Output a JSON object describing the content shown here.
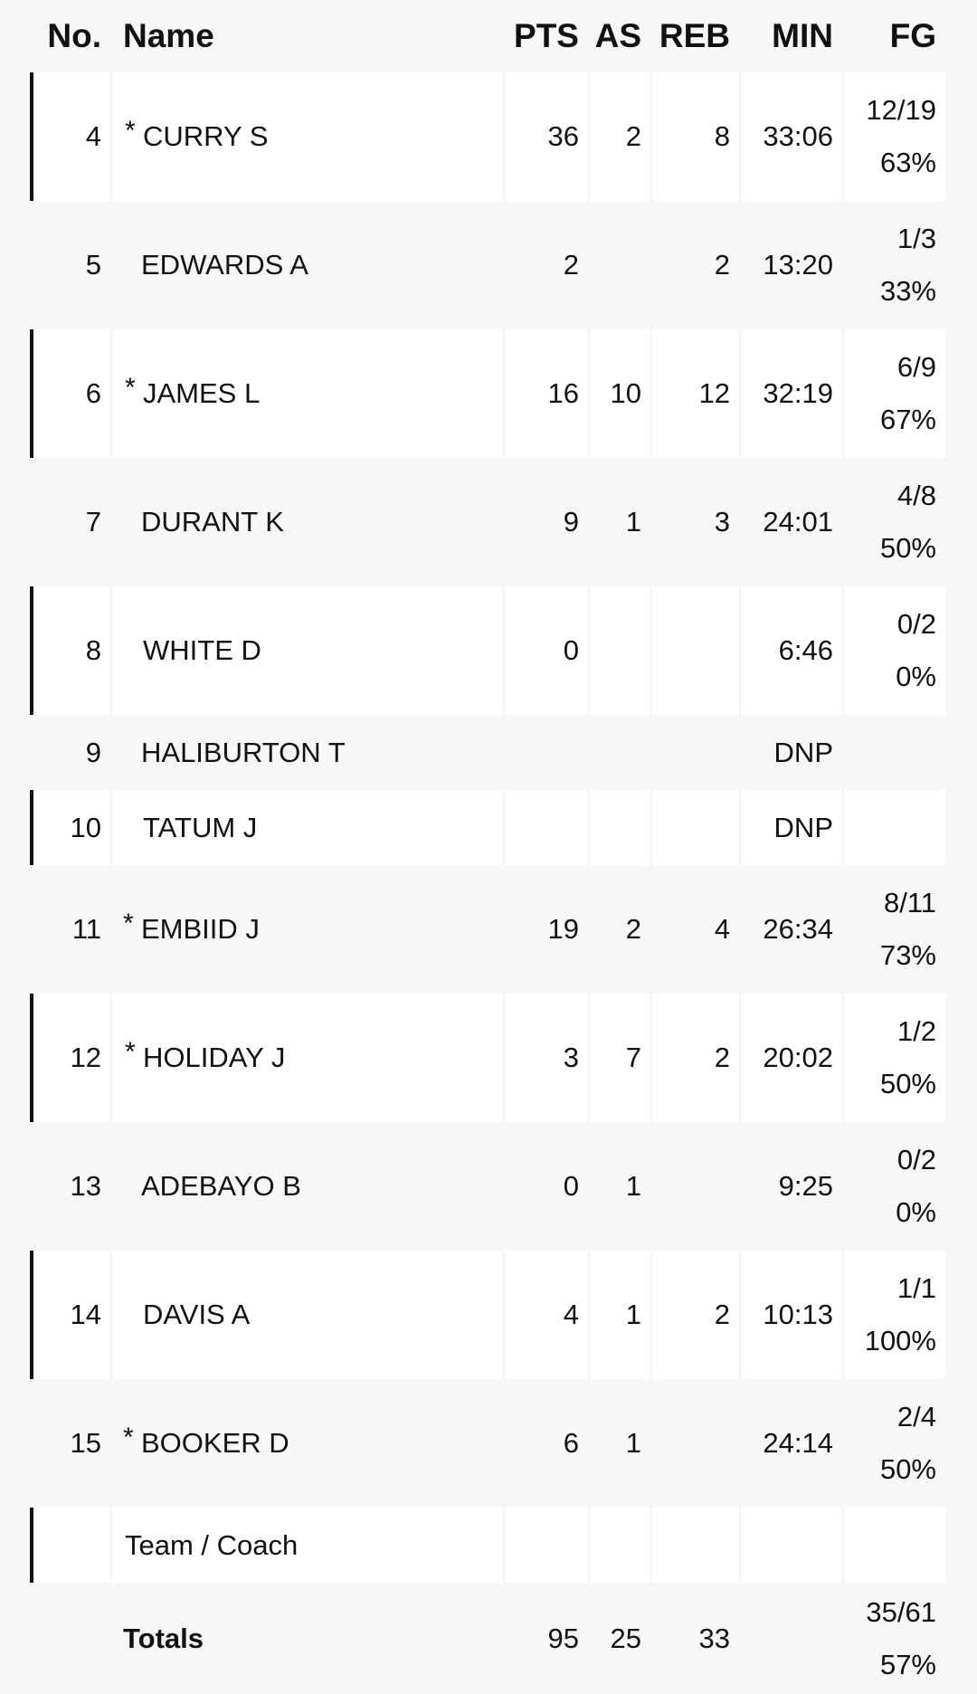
{
  "headers": {
    "no": "No.",
    "name": "Name",
    "pts": "PTS",
    "as": "AS",
    "reb": "REB",
    "min": "MIN",
    "fg": "FG"
  },
  "players": [
    {
      "no": "4",
      "starter": "*",
      "name": "CURRY S",
      "pts": "36",
      "as": "2",
      "reb": "8",
      "min": "33:06",
      "fg": "12/19",
      "fg_pct": "63%"
    },
    {
      "no": "5",
      "starter": "",
      "name": "EDWARDS A",
      "pts": "2",
      "as": "",
      "reb": "2",
      "min": "13:20",
      "fg": "1/3",
      "fg_pct": "33%"
    },
    {
      "no": "6",
      "starter": "*",
      "name": "JAMES L",
      "pts": "16",
      "as": "10",
      "reb": "12",
      "min": "32:19",
      "fg": "6/9",
      "fg_pct": "67%"
    },
    {
      "no": "7",
      "starter": "",
      "name": "DURANT K",
      "pts": "9",
      "as": "1",
      "reb": "3",
      "min": "24:01",
      "fg": "4/8",
      "fg_pct": "50%"
    },
    {
      "no": "8",
      "starter": "",
      "name": "WHITE D",
      "pts": "0",
      "as": "",
      "reb": "",
      "min": "6:46",
      "fg": "0/2",
      "fg_pct": "0%"
    },
    {
      "no": "9",
      "starter": "",
      "name": "HALIBURTON T",
      "pts": "",
      "as": "",
      "reb": "",
      "min": "DNP",
      "fg": "",
      "fg_pct": ""
    },
    {
      "no": "10",
      "starter": "",
      "name": "TATUM J",
      "pts": "",
      "as": "",
      "reb": "",
      "min": "DNP",
      "fg": "",
      "fg_pct": ""
    },
    {
      "no": "11",
      "starter": "*",
      "name": "EMBIID J",
      "pts": "19",
      "as": "2",
      "reb": "4",
      "min": "26:34",
      "fg": "8/11",
      "fg_pct": "73%"
    },
    {
      "no": "12",
      "starter": "*",
      "name": "HOLIDAY J",
      "pts": "3",
      "as": "7",
      "reb": "2",
      "min": "20:02",
      "fg": "1/2",
      "fg_pct": "50%"
    },
    {
      "no": "13",
      "starter": "",
      "name": "ADEBAYO B",
      "pts": "0",
      "as": "1",
      "reb": "",
      "min": "9:25",
      "fg": "0/2",
      "fg_pct": "0%"
    },
    {
      "no": "14",
      "starter": "",
      "name": "DAVIS A",
      "pts": "4",
      "as": "1",
      "reb": "2",
      "min": "10:13",
      "fg": "1/1",
      "fg_pct": "100%"
    },
    {
      "no": "15",
      "starter": "*",
      "name": "BOOKER D",
      "pts": "6",
      "as": "1",
      "reb": "",
      "min": "24:14",
      "fg": "2/4",
      "fg_pct": "50%"
    }
  ],
  "team_row": {
    "name": "Team / Coach"
  },
  "totals": {
    "name": "Totals",
    "pts": "95",
    "as": "25",
    "reb": "33",
    "fg": "35/61",
    "fg_pct": "57%"
  }
}
